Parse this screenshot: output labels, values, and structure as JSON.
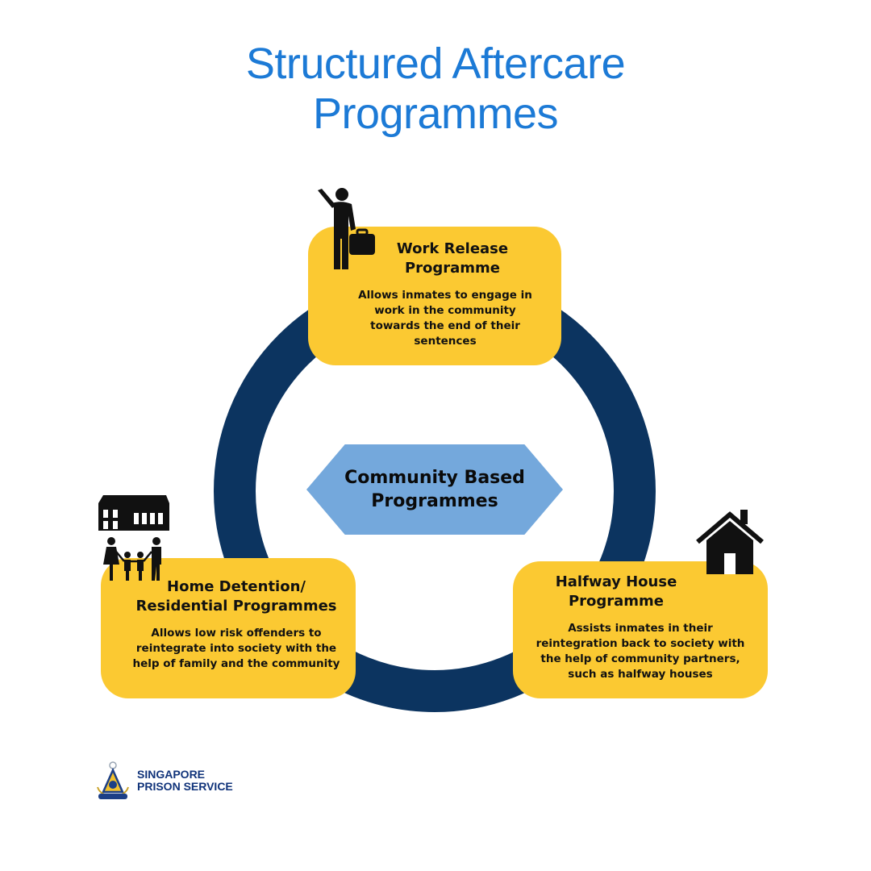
{
  "title": {
    "line1": "Structured Aftercare",
    "line2": "Programmes"
  },
  "center": {
    "line1": "Community Based",
    "line2": "Programmes"
  },
  "cards": {
    "work": {
      "title_line1": "Work Release",
      "title_line2": "Programme",
      "desc": "Allows inmates to engage in work in the community towards the end of their sentences"
    },
    "home": {
      "title_line1": "Home Detention/",
      "title_line2": "Residential Programmes",
      "desc": "Allows low risk offenders to reintegrate into society with the help of family and the community"
    },
    "halfway": {
      "title_line1": "Halfway House",
      "title_line2": "Programme",
      "desc": "Assists inmates in their reintegration back to society with the help of community partners, such as halfway houses"
    }
  },
  "logo": {
    "line1": "SINGAPORE",
    "line2": "PRISON SERVICE"
  },
  "icons": {
    "work": "worker-with-briefcase-icon",
    "home": "family-and-house-icon",
    "halfway": "house-icon",
    "logo": "prison-service-crest-icon"
  },
  "colors": {
    "title": "#1c7ad6",
    "ring": "#0c3460",
    "card": "#fbc932",
    "center": "#74a8dc",
    "logo_text": "#10337a"
  }
}
